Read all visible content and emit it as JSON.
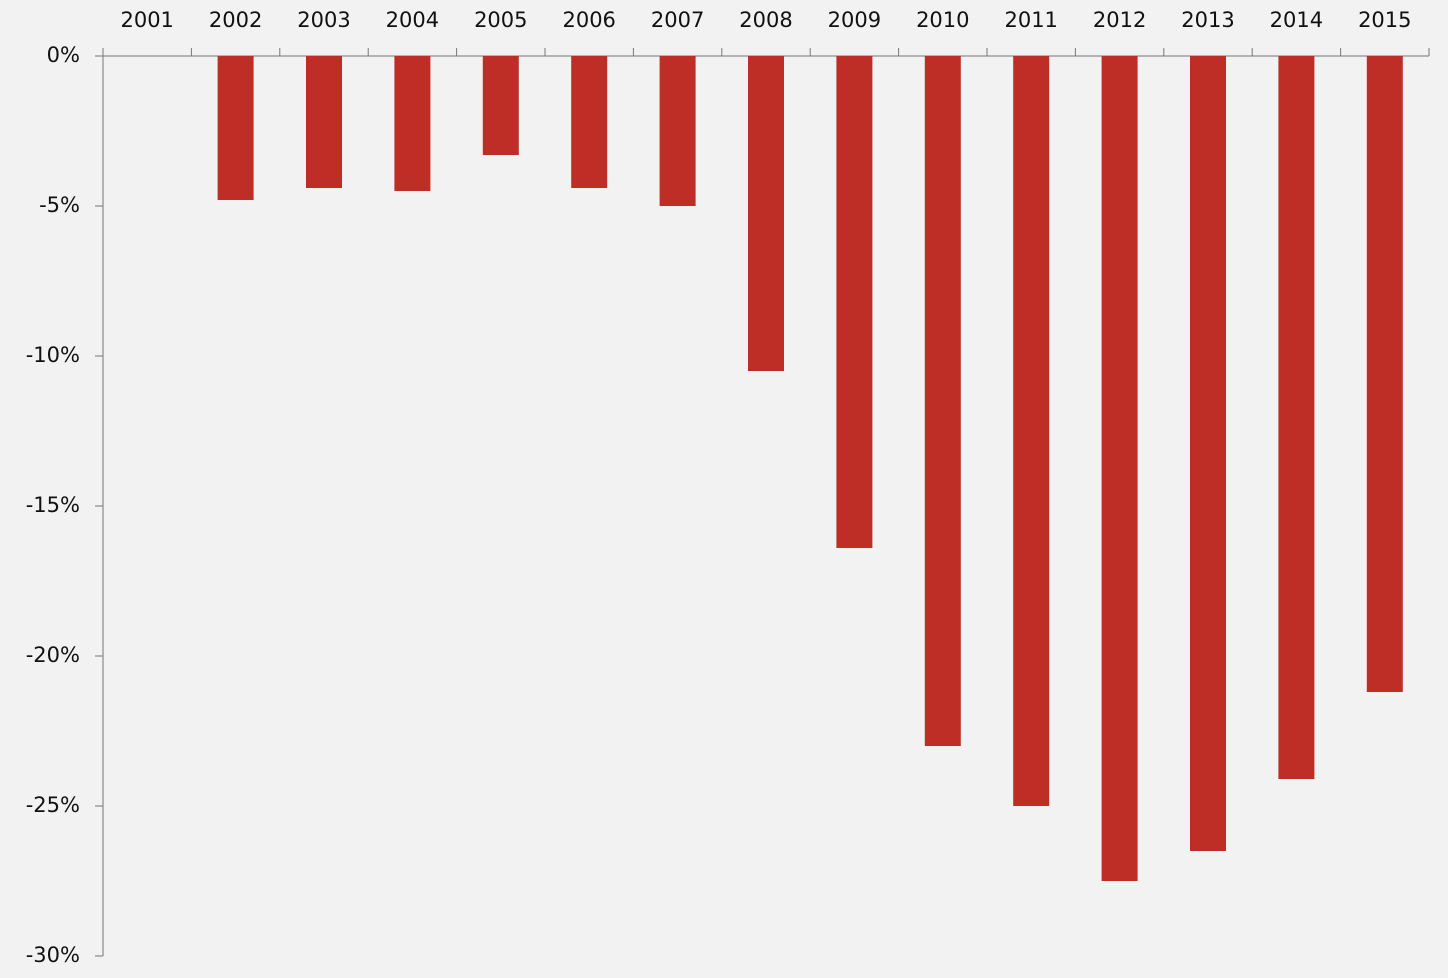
{
  "chart_data": {
    "type": "bar",
    "categories": [
      "2001",
      "2002",
      "2003",
      "2004",
      "2005",
      "2006",
      "2007",
      "2008",
      "2009",
      "2010",
      "2011",
      "2012",
      "2013",
      "2014",
      "2015"
    ],
    "values": [
      0,
      -4.8,
      -4.4,
      -4.5,
      -3.3,
      -4.4,
      -5.0,
      -10.5,
      -16.4,
      -23.0,
      -25.0,
      -27.5,
      -26.5,
      -24.1,
      -21.2
    ],
    "color": "#be2e27",
    "ylim": [
      -30,
      0
    ],
    "yticks": [
      {
        "value": 0,
        "label": "0%"
      },
      {
        "value": -5,
        "label": "-5%"
      },
      {
        "value": -10,
        "label": "-10%"
      },
      {
        "value": -15,
        "label": "-15%"
      },
      {
        "value": -20,
        "label": "-20%"
      },
      {
        "value": -25,
        "label": "-25%"
      },
      {
        "value": -30,
        "label": "-30%"
      }
    ],
    "grid": false
  }
}
